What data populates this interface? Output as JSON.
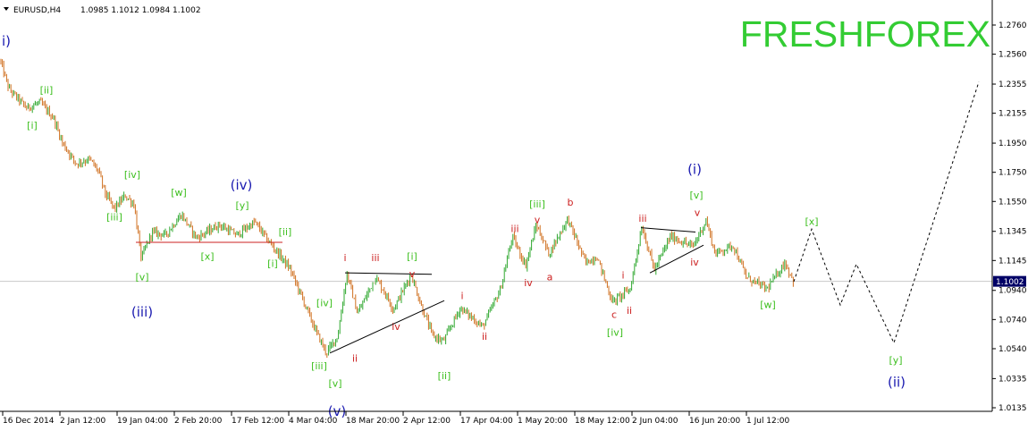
{
  "chart_data": {
    "type": "candlestick",
    "header": {
      "symbol": "EURUSD,H4",
      "ohlc": "1.0985 1.1012 1.0984 1.1002"
    },
    "watermark": "FRESHFOREX",
    "current_price": "1.1002",
    "y_axis": {
      "ticks": [
        "1.2760",
        "1.2560",
        "1.2355",
        "1.2155",
        "1.1950",
        "1.1750",
        "1.1550",
        "1.1345",
        "1.1145",
        "1.0940",
        "1.0740",
        "1.0540",
        "1.0335",
        "1.0135"
      ],
      "ylim": [
        1.0135,
        1.276
      ]
    },
    "x_axis": {
      "ticks": [
        "16 Dec 2014",
        "2 Jan 12:00",
        "19 Jan 04:00",
        "2 Feb 20:00",
        "17 Feb 12:00",
        "4 Mar 04:00",
        "18 Mar 20:00",
        "2 Apr 12:00",
        "17 Apr 04:00",
        "1 May 20:00",
        "18 May 12:00",
        "2 Jun 04:00",
        "16 Jun 20:00",
        "1 Jul 12:00"
      ]
    },
    "price_path": [
      {
        "t": 0,
        "p": 1.252
      },
      {
        "t": 10,
        "p": 1.232
      },
      {
        "t": 30,
        "p": 1.219
      },
      {
        "t": 45,
        "p": 1.223
      },
      {
        "t": 60,
        "p": 1.212
      },
      {
        "t": 70,
        "p": 1.195
      },
      {
        "t": 85,
        "p": 1.181
      },
      {
        "t": 100,
        "p": 1.184
      },
      {
        "t": 110,
        "p": 1.176
      },
      {
        "t": 118,
        "p": 1.16
      },
      {
        "t": 128,
        "p": 1.15
      },
      {
        "t": 140,
        "p": 1.159
      },
      {
        "t": 150,
        "p": 1.153
      },
      {
        "t": 158,
        "p": 1.116
      },
      {
        "t": 170,
        "p": 1.134
      },
      {
        "t": 185,
        "p": 1.132
      },
      {
        "t": 203,
        "p": 1.146
      },
      {
        "t": 220,
        "p": 1.13
      },
      {
        "t": 245,
        "p": 1.139
      },
      {
        "t": 265,
        "p": 1.132
      },
      {
        "t": 285,
        "p": 1.141
      },
      {
        "t": 300,
        "p": 1.128
      },
      {
        "t": 312,
        "p": 1.119
      },
      {
        "t": 325,
        "p": 1.108
      },
      {
        "t": 340,
        "p": 1.086
      },
      {
        "t": 352,
        "p": 1.068
      },
      {
        "t": 365,
        "p": 1.051
      },
      {
        "t": 378,
        "p": 1.063
      },
      {
        "t": 388,
        "p": 1.106
      },
      {
        "t": 400,
        "p": 1.078
      },
      {
        "t": 420,
        "p": 1.103
      },
      {
        "t": 430,
        "p": 1.093
      },
      {
        "t": 440,
        "p": 1.081
      },
      {
        "t": 460,
        "p": 1.105
      },
      {
        "t": 472,
        "p": 1.082
      },
      {
        "t": 484,
        "p": 1.063
      },
      {
        "t": 496,
        "p": 1.059
      },
      {
        "t": 515,
        "p": 1.082
      },
      {
        "t": 540,
        "p": 1.069
      },
      {
        "t": 560,
        "p": 1.095
      },
      {
        "t": 573,
        "p": 1.131
      },
      {
        "t": 588,
        "p": 1.111
      },
      {
        "t": 600,
        "p": 1.139
      },
      {
        "t": 614,
        "p": 1.119
      },
      {
        "t": 635,
        "p": 1.143
      },
      {
        "t": 655,
        "p": 1.113
      },
      {
        "t": 668,
        "p": 1.117
      },
      {
        "t": 685,
        "p": 1.086
      },
      {
        "t": 705,
        "p": 1.095
      },
      {
        "t": 718,
        "p": 1.138
      },
      {
        "t": 732,
        "p": 1.108
      },
      {
        "t": 750,
        "p": 1.131
      },
      {
        "t": 775,
        "p": 1.124
      },
      {
        "t": 790,
        "p": 1.142
      },
      {
        "t": 800,
        "p": 1.119
      },
      {
        "t": 820,
        "p": 1.125
      },
      {
        "t": 835,
        "p": 1.103
      },
      {
        "t": 858,
        "p": 1.095
      },
      {
        "t": 878,
        "p": 1.113
      },
      {
        "t": 888,
        "p": 1.1
      }
    ],
    "projection": [
      {
        "t": 888,
        "p": 1.1
      },
      {
        "t": 908,
        "p": 1.136
      },
      {
        "t": 940,
        "p": 1.084
      },
      {
        "t": 958,
        "p": 1.112
      },
      {
        "t": 1000,
        "p": 1.058
      },
      {
        "t": 1095,
        "p": 1.237
      }
    ],
    "lines": [
      {
        "from": {
          "t": 152,
          "p": 1.127
        },
        "to": {
          "t": 316,
          "p": 1.127
        },
        "color": "#cc2020"
      },
      {
        "from": {
          "t": 386,
          "p": 1.106
        },
        "to": {
          "t": 483,
          "p": 1.105
        },
        "color": "#000000"
      },
      {
        "from": {
          "t": 369,
          "p": 1.051
        },
        "to": {
          "t": 497,
          "p": 1.087
        },
        "color": "#000000"
      },
      {
        "from": {
          "t": 717,
          "p": 1.137
        },
        "to": {
          "t": 778,
          "p": 1.134
        },
        "color": "#000000"
      },
      {
        "from": {
          "t": 727,
          "p": 1.106
        },
        "to": {
          "t": 787,
          "p": 1.125
        },
        "color": "#000000"
      }
    ],
    "wave_labels": [
      {
        "text": "i)",
        "t": 7,
        "p": 1.262,
        "color": "#1a1ab0"
      },
      {
        "text": "[ii]",
        "t": 52,
        "p": 1.229,
        "color": "#3cbf1e"
      },
      {
        "text": "[i]",
        "t": 36,
        "p": 1.205,
        "color": "#3cbf1e"
      },
      {
        "text": "[iv]",
        "t": 148,
        "p": 1.171,
        "color": "#3cbf1e"
      },
      {
        "text": "[iii]",
        "t": 128,
        "p": 1.142,
        "color": "#3cbf1e"
      },
      {
        "text": "[v]",
        "t": 159,
        "p": 1.101,
        "color": "#3cbf1e"
      },
      {
        "text": "(iii)",
        "t": 159,
        "p": 1.076,
        "color": "#1a1ab0"
      },
      {
        "text": "[w]",
        "t": 200,
        "p": 1.159,
        "color": "#3cbf1e"
      },
      {
        "text": "[x]",
        "t": 232,
        "p": 1.115,
        "color": "#3cbf1e"
      },
      {
        "text": "(iv)",
        "t": 270,
        "p": 1.163,
        "color": "#1a1ab0"
      },
      {
        "text": "[y]",
        "t": 271,
        "p": 1.15,
        "color": "#3cbf1e"
      },
      {
        "text": "[ii]",
        "t": 319,
        "p": 1.132,
        "color": "#3cbf1e"
      },
      {
        "text": "[i]",
        "t": 305,
        "p": 1.11,
        "color": "#3cbf1e"
      },
      {
        "text": "[iv]",
        "t": 363,
        "p": 1.083,
        "color": "#3cbf1e"
      },
      {
        "text": "[iii]",
        "t": 357,
        "p": 1.04,
        "color": "#3cbf1e"
      },
      {
        "text": "[v]",
        "t": 375,
        "p": 1.028,
        "color": "#3cbf1e"
      },
      {
        "text": "(v)",
        "t": 377,
        "p": 1.008,
        "color": "#1a1ab0"
      },
      {
        "text": "i",
        "t": 386,
        "p": 1.114,
        "color": "#cc2020"
      },
      {
        "text": "iii",
        "t": 420,
        "p": 1.114,
        "color": "#cc2020"
      },
      {
        "text": "ii",
        "t": 397,
        "p": 1.045,
        "color": "#cc2020"
      },
      {
        "text": "iv",
        "t": 443,
        "p": 1.067,
        "color": "#cc2020"
      },
      {
        "text": "[i]",
        "t": 461,
        "p": 1.115,
        "color": "#3cbf1e"
      },
      {
        "text": "v",
        "t": 461,
        "p": 1.103,
        "color": "#cc2020"
      },
      {
        "text": "[ii]",
        "t": 497,
        "p": 1.033,
        "color": "#3cbf1e"
      },
      {
        "text": "i",
        "t": 517,
        "p": 1.088,
        "color": "#cc2020"
      },
      {
        "text": "ii",
        "t": 542,
        "p": 1.06,
        "color": "#cc2020"
      },
      {
        "text": "iii",
        "t": 576,
        "p": 1.134,
        "color": "#cc2020"
      },
      {
        "text": "[iii]",
        "t": 601,
        "p": 1.151,
        "color": "#3cbf1e"
      },
      {
        "text": "v",
        "t": 601,
        "p": 1.14,
        "color": "#cc2020"
      },
      {
        "text": "iv",
        "t": 591,
        "p": 1.097,
        "color": "#cc2020"
      },
      {
        "text": "a",
        "t": 615,
        "p": 1.101,
        "color": "#cc2020"
      },
      {
        "text": "b",
        "t": 638,
        "p": 1.152,
        "color": "#cc2020"
      },
      {
        "text": "i",
        "t": 697,
        "p": 1.102,
        "color": "#cc2020"
      },
      {
        "text": "c",
        "t": 687,
        "p": 1.075,
        "color": "#cc2020"
      },
      {
        "text": "ii",
        "t": 704,
        "p": 1.078,
        "color": "#cc2020"
      },
      {
        "text": "[iv]",
        "t": 688,
        "p": 1.063,
        "color": "#3cbf1e"
      },
      {
        "text": "iii",
        "t": 719,
        "p": 1.141,
        "color": "#cc2020"
      },
      {
        "text": "(i)",
        "t": 777,
        "p": 1.174,
        "color": "#1a1ab0"
      },
      {
        "text": "[v]",
        "t": 779,
        "p": 1.157,
        "color": "#3cbf1e"
      },
      {
        "text": "v",
        "t": 780,
        "p": 1.145,
        "color": "#cc2020"
      },
      {
        "text": "iv",
        "t": 777,
        "p": 1.111,
        "color": "#cc2020"
      },
      {
        "text": "[w]",
        "t": 859,
        "p": 1.082,
        "color": "#3cbf1e"
      },
      {
        "text": "[x]",
        "t": 908,
        "p": 1.139,
        "color": "#3cbf1e"
      },
      {
        "text": "[y]",
        "t": 1002,
        "p": 1.044,
        "color": "#3cbf1e"
      },
      {
        "text": "(ii)",
        "t": 1003,
        "p": 1.028,
        "color": "#1a1ab0"
      }
    ],
    "colors": {
      "bull": "#2fa82f",
      "bear": "#d07020",
      "watermark": "#33cc33",
      "price_line": "#c8c8c8",
      "price_badge": "#000066"
    },
    "grid": false
  }
}
